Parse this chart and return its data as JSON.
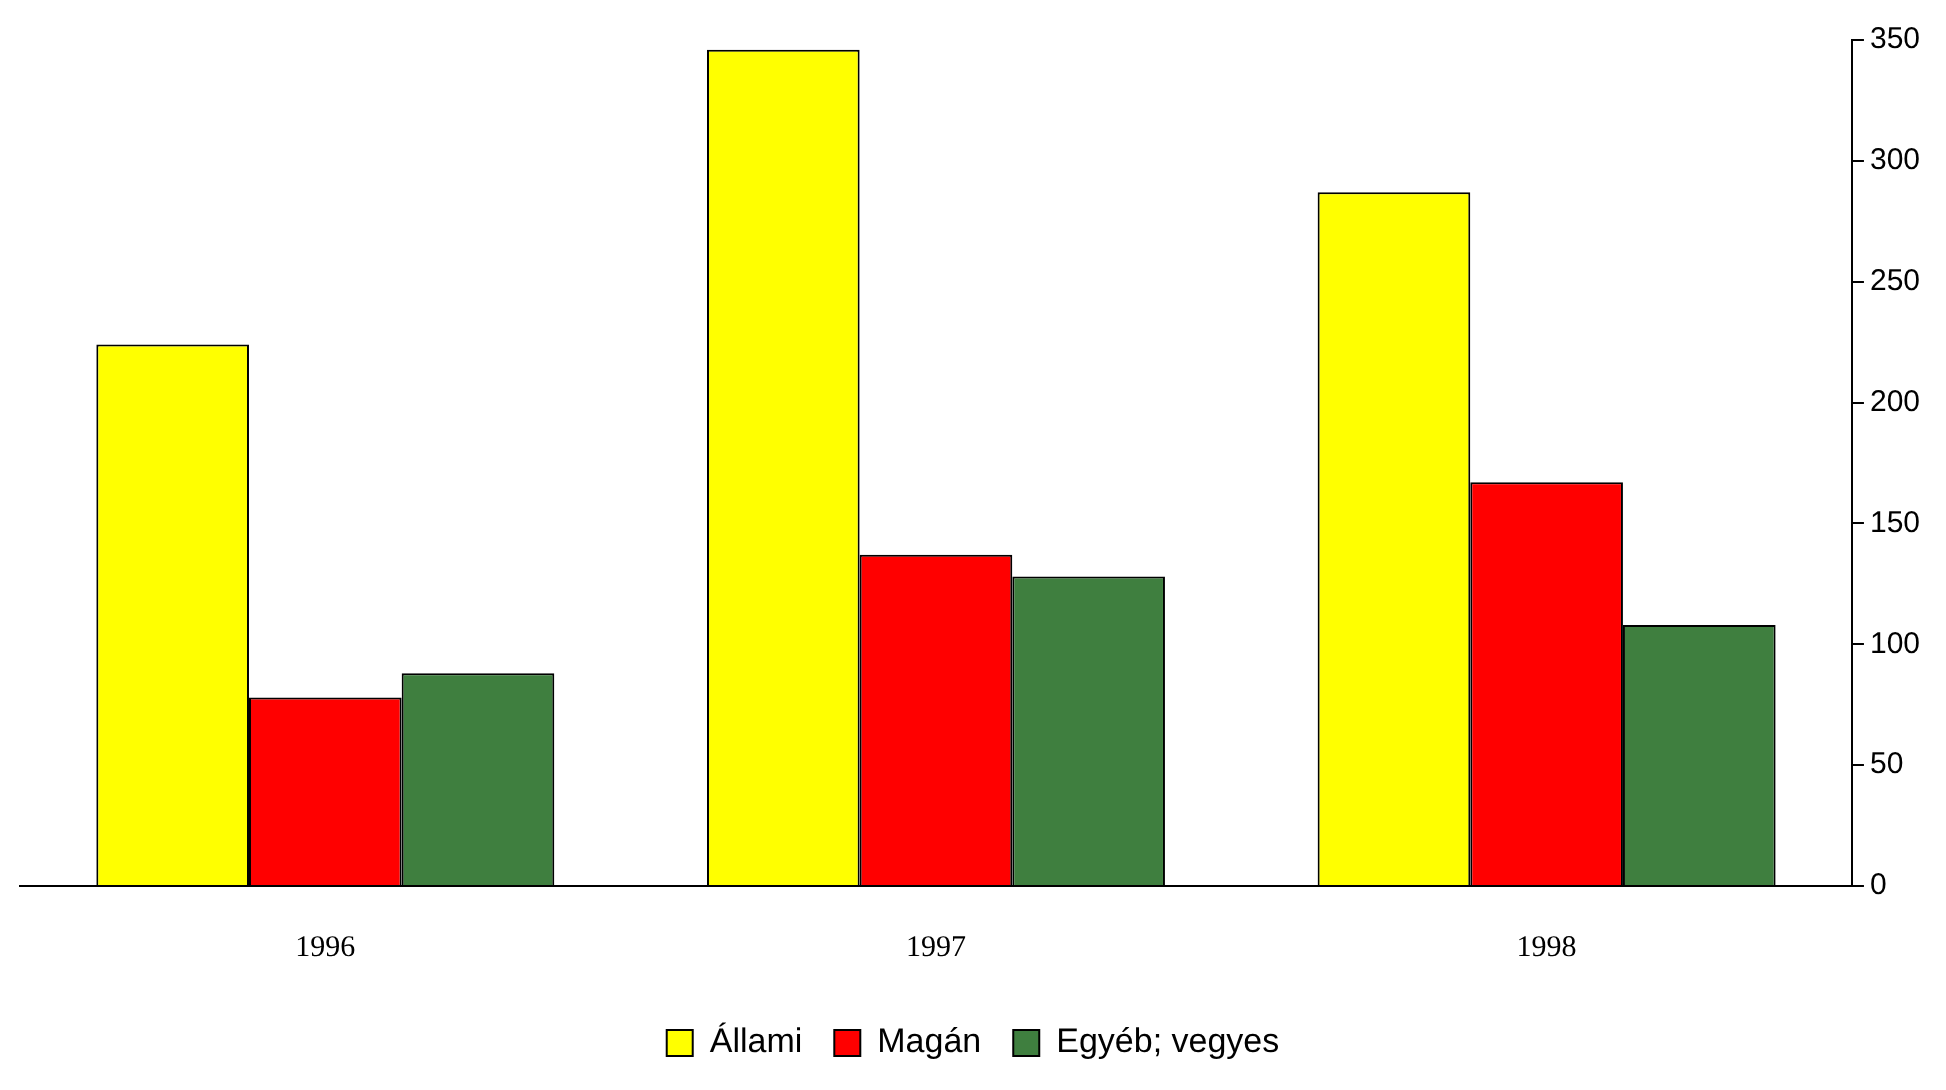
{
  "chart_data": {
    "type": "bar",
    "categories": [
      "1996",
      "1997",
      "1998"
    ],
    "series": [
      {
        "name": "Állami",
        "color": "#ffff00",
        "values": [
          224,
          346,
          287
        ]
      },
      {
        "name": "Magán",
        "color": "#ff0000",
        "values": [
          78,
          137,
          167
        ]
      },
      {
        "name": "Egyéb; vegyes",
        "color": "#3f7f3f",
        "values": [
          88,
          128,
          108
        ]
      }
    ],
    "ylim": [
      0,
      350
    ],
    "yticks": [
      0,
      50,
      100,
      150,
      200,
      250,
      300,
      350
    ],
    "grid": false,
    "legend": "bottom"
  }
}
